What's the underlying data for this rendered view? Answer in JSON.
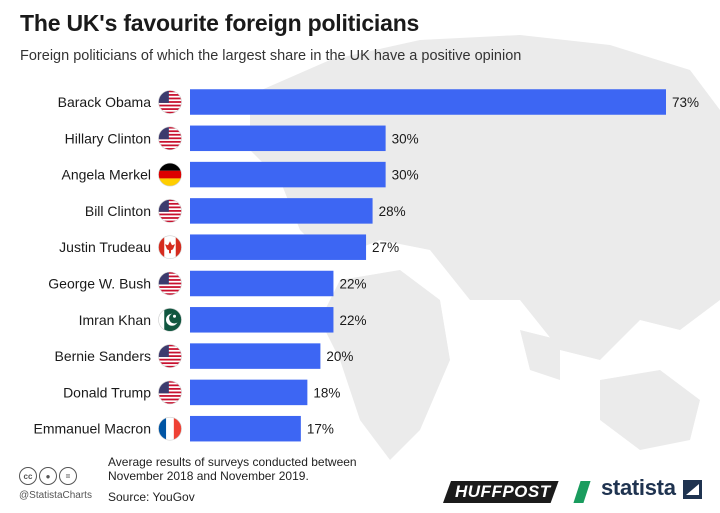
{
  "header": {
    "title": "The UK's favourite foreign politicians",
    "subtitle": "Foreign politicians of which the largest share in the UK have a positive opinion"
  },
  "footer": {
    "note": "Average results of surveys conducted between November 2018 and November 2019.",
    "source": "Source: YouGov",
    "handle": "@StatistaCharts",
    "cc_icons": [
      "cc",
      "person",
      "equals"
    ],
    "partner_logo": "HUFFPOST",
    "brand": "statista"
  },
  "colors": {
    "bar": "#3d66f3",
    "map": "#ebebeb",
    "flag_us_red": "#c8102e",
    "flag_us_blue": "#3c3b6e",
    "flag_ca_red": "#d52b1e",
    "flag_pk_green": "#115740",
    "flag_fr_blue": "#0055a4",
    "flag_fr_red": "#ef4135",
    "flag_de_red": "#dd0000",
    "flag_de_gold": "#ffce00"
  },
  "chart_data": {
    "type": "bar",
    "orientation": "horizontal",
    "categories": [
      "Barack Obama",
      "Hillary Clinton",
      "Angela Merkel",
      "Bill Clinton",
      "Justin Trudeau",
      "George W. Bush",
      "Imran Khan",
      "Bernie Sanders",
      "Donald Trump",
      "Emmanuel Macron"
    ],
    "values": [
      73,
      30,
      30,
      28,
      27,
      22,
      22,
      20,
      18,
      17
    ],
    "value_labels": [
      "73%",
      "30%",
      "30%",
      "28%",
      "27%",
      "22%",
      "22%",
      "20%",
      "18%",
      "17%"
    ],
    "flags": [
      "us",
      "us",
      "de",
      "us",
      "ca",
      "us",
      "pk",
      "us",
      "us",
      "fr"
    ],
    "xlim": [
      0,
      73
    ],
    "grid": false,
    "legend": "none"
  }
}
